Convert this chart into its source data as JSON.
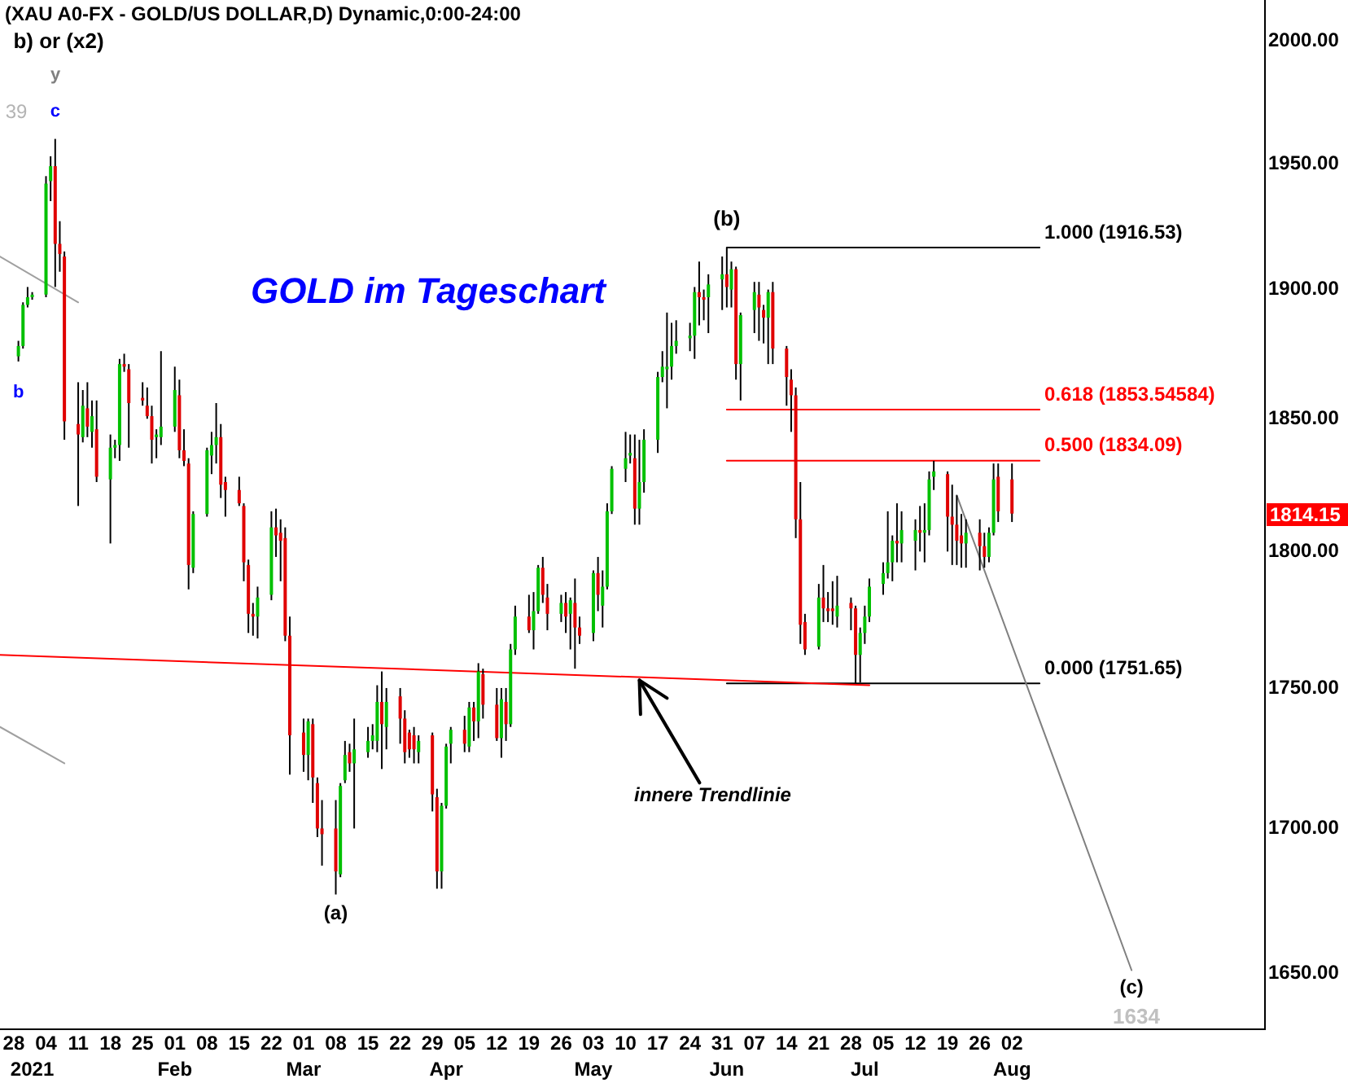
{
  "chart_data": {
    "type": "candlestick",
    "title": "(XAU A0-FX - GOLD/US DOLLAR,D) Dynamic,0:00-24:00",
    "subtitle": "GOLD im Tageschart",
    "x": [
      "2020-12-29",
      "2020-12-30",
      "2020-12-31",
      "2021-01-01",
      "2021-01-04",
      "2021-01-05",
      "2021-01-06",
      "2021-01-07",
      "2021-01-08",
      "2021-01-11",
      "2021-01-12",
      "2021-01-13",
      "2021-01-14",
      "2021-01-15",
      "2021-01-18",
      "2021-01-19",
      "2021-01-20",
      "2021-01-21",
      "2021-01-22",
      "2021-01-25",
      "2021-01-26",
      "2021-01-27",
      "2021-01-28",
      "2021-01-29",
      "2021-02-01",
      "2021-02-02",
      "2021-02-03",
      "2021-02-04",
      "2021-02-05",
      "2021-02-08",
      "2021-02-09",
      "2021-02-10",
      "2021-02-11",
      "2021-02-12",
      "2021-02-15",
      "2021-02-16",
      "2021-02-17",
      "2021-02-18",
      "2021-02-19",
      "2021-02-22",
      "2021-02-23",
      "2021-02-24",
      "2021-02-25",
      "2021-02-26",
      "2021-03-01",
      "2021-03-02",
      "2021-03-03",
      "2021-03-04",
      "2021-03-05",
      "2021-03-08",
      "2021-03-09",
      "2021-03-10",
      "2021-03-11",
      "2021-03-12",
      "2021-03-15",
      "2021-03-16",
      "2021-03-17",
      "2021-03-18",
      "2021-03-19",
      "2021-03-22",
      "2021-03-23",
      "2021-03-24",
      "2021-03-25",
      "2021-03-26",
      "2021-03-29",
      "2021-03-30",
      "2021-03-31",
      "2021-04-01",
      "2021-04-02",
      "2021-04-05",
      "2021-04-06",
      "2021-04-07",
      "2021-04-08",
      "2021-04-09",
      "2021-04-12",
      "2021-04-13",
      "2021-04-14",
      "2021-04-15",
      "2021-04-16",
      "2021-04-19",
      "2021-04-20",
      "2021-04-21",
      "2021-04-22",
      "2021-04-23",
      "2021-04-26",
      "2021-04-27",
      "2021-04-28",
      "2021-04-29",
      "2021-04-30",
      "2021-05-03",
      "2021-05-04",
      "2021-05-05",
      "2021-05-06",
      "2021-05-07",
      "2021-05-10",
      "2021-05-11",
      "2021-05-12",
      "2021-05-13",
      "2021-05-14",
      "2021-05-17",
      "2021-05-18",
      "2021-05-19",
      "2021-05-20",
      "2021-05-21",
      "2021-05-24",
      "2021-05-25",
      "2021-05-26",
      "2021-05-27",
      "2021-05-28",
      "2021-05-31",
      "2021-06-01",
      "2021-06-02",
      "2021-06-03",
      "2021-06-04",
      "2021-06-07",
      "2021-06-08",
      "2021-06-09",
      "2021-06-10",
      "2021-06-11",
      "2021-06-14",
      "2021-06-15",
      "2021-06-16",
      "2021-06-17",
      "2021-06-18",
      "2021-06-21",
      "2021-06-22",
      "2021-06-23",
      "2021-06-24",
      "2021-06-25",
      "2021-06-28",
      "2021-06-29",
      "2021-06-30",
      "2021-07-01",
      "2021-07-02",
      "2021-07-05",
      "2021-07-06",
      "2021-07-07",
      "2021-07-08",
      "2021-07-09",
      "2021-07-12",
      "2021-07-13",
      "2021-07-14",
      "2021-07-15",
      "2021-07-16",
      "2021-07-19",
      "2021-07-20",
      "2021-07-21",
      "2021-07-22",
      "2021-07-23",
      "2021-07-26",
      "2021-07-27",
      "2021-07-28",
      "2021-07-29",
      "2021-07-30",
      "2021-08-02"
    ],
    "ohlc": [
      [
        1874,
        1880,
        1872,
        1878
      ],
      [
        1878,
        1895,
        1877,
        1894
      ],
      [
        1894,
        1901,
        1893,
        1897
      ],
      [
        1897,
        1899,
        1896,
        1898
      ],
      [
        1898,
        1945,
        1897,
        1942
      ],
      [
        1943,
        1953,
        1935,
        1949
      ],
      [
        1949,
        1960,
        1901,
        1918
      ],
      [
        1918,
        1927,
        1907,
        1914
      ],
      [
        1913,
        1915,
        1842,
        1849
      ],
      [
        1848,
        1864,
        1817,
        1844
      ],
      [
        1843,
        1861,
        1841,
        1855
      ],
      [
        1854,
        1864,
        1843,
        1847
      ],
      [
        1845,
        1857,
        1839,
        1851
      ],
      [
        1846,
        1857,
        1826,
        1828
      ],
      [
        1827,
        1844,
        1803,
        1839
      ],
      [
        1839,
        1842,
        1835,
        1840
      ],
      [
        1840,
        1873,
        1834,
        1871
      ],
      [
        1871,
        1875,
        1868,
        1870
      ],
      [
        1869,
        1871,
        1839,
        1856
      ],
      [
        1858,
        1864,
        1855,
        1857
      ],
      [
        1855,
        1862,
        1850,
        1851
      ],
      [
        1851,
        1855,
        1833,
        1842
      ],
      [
        1843,
        1846,
        1835,
        1844
      ],
      [
        1843,
        1876,
        1840,
        1847
      ],
      [
        1847,
        1870,
        1845,
        1861
      ],
      [
        1859,
        1865,
        1835,
        1838
      ],
      [
        1838,
        1846,
        1832,
        1834
      ],
      [
        1833,
        1835,
        1786,
        1795
      ],
      [
        1794,
        1815,
        1792,
        1814
      ],
      [
        1814,
        1839,
        1813,
        1838
      ],
      [
        1836,
        1845,
        1829,
        1840
      ],
      [
        1840,
        1856,
        1833,
        1843
      ],
      [
        1843,
        1848,
        1820,
        1825
      ],
      [
        1826,
        1828,
        1813,
        1823
      ],
      [
        1823,
        1828,
        1817,
        1818
      ],
      [
        1817,
        1818,
        1789,
        1796
      ],
      [
        1795,
        1797,
        1770,
        1777
      ],
      [
        1777,
        1781,
        1769,
        1776
      ],
      [
        1776,
        1787,
        1768,
        1783
      ],
      [
        1784,
        1815,
        1782,
        1809
      ],
      [
        1809,
        1816,
        1798,
        1806
      ],
      [
        1807,
        1812,
        1789,
        1804
      ],
      [
        1805,
        1809,
        1767,
        1769
      ],
      [
        1769,
        1776,
        1719,
        1733
      ],
      [
        1734,
        1739,
        1720,
        1726
      ],
      [
        1726,
        1739,
        1717,
        1738
      ],
      [
        1737,
        1739,
        1709,
        1718
      ],
      [
        1716,
        1718,
        1697,
        1700
      ],
      [
        1700,
        1710,
        1687,
        1698
      ],
      [
        1700,
        1710,
        1677,
        1685
      ],
      [
        1684,
        1716,
        1683,
        1715
      ],
      [
        1717,
        1731,
        1716,
        1726
      ],
      [
        1727,
        1730,
        1720,
        1723
      ],
      [
        1723,
        1739,
        1700,
        1728
      ],
      [
        1727,
        1736,
        1725,
        1731
      ],
      [
        1731,
        1737,
        1728,
        1733
      ],
      [
        1731,
        1751,
        1727,
        1745
      ],
      [
        1745,
        1756,
        1721,
        1737
      ],
      [
        1736,
        1750,
        1728,
        1745
      ],
      [
        1747,
        1750,
        1730,
        1739
      ],
      [
        1739,
        1742,
        1723,
        1727
      ],
      [
        1734,
        1735,
        1725,
        1728
      ],
      [
        1733,
        1736,
        1723,
        1728
      ],
      [
        1727,
        1733,
        1723,
        1731
      ],
      [
        1733,
        1734,
        1706,
        1712
      ],
      [
        1711,
        1714,
        1679,
        1685
      ],
      [
        1685,
        1709,
        1679,
        1708
      ],
      [
        1708,
        1730,
        1707,
        1729
      ],
      [
        1730,
        1736,
        1723,
        1735
      ],
      [
        1735,
        1740,
        1727,
        1730
      ],
      [
        1729,
        1745,
        1727,
        1743
      ],
      [
        1743,
        1745,
        1731,
        1738
      ],
      [
        1738,
        1759,
        1732,
        1756
      ],
      [
        1755,
        1757,
        1739,
        1744
      ],
      [
        1744,
        1750,
        1731,
        1732
      ],
      [
        1732,
        1750,
        1725,
        1746
      ],
      [
        1745,
        1750,
        1731,
        1737
      ],
      [
        1737,
        1766,
        1736,
        1764
      ],
      [
        1764,
        1780,
        1762,
        1776
      ],
      [
        1776,
        1784,
        1770,
        1771
      ],
      [
        1771,
        1785,
        1764,
        1778
      ],
      [
        1778,
        1795,
        1777,
        1794
      ],
      [
        1794,
        1798,
        1781,
        1784
      ],
      [
        1783,
        1788,
        1771,
        1777
      ],
      [
        1777,
        1784,
        1774,
        1781
      ],
      [
        1781,
        1785,
        1770,
        1776
      ],
      [
        1777,
        1783,
        1764,
        1782
      ],
      [
        1781,
        1790,
        1757,
        1772
      ],
      [
        1772,
        1776,
        1766,
        1769
      ],
      [
        1770,
        1793,
        1767,
        1792
      ],
      [
        1792,
        1798,
        1778,
        1784
      ],
      [
        1780,
        1793,
        1772,
        1787
      ],
      [
        1787,
        1818,
        1786,
        1815
      ],
      [
        1815,
        1832,
        1814,
        1831
      ],
      [
        1831,
        1845,
        1826,
        1835
      ],
      [
        1836,
        1844,
        1833,
        1837
      ],
      [
        1835,
        1844,
        1810,
        1816
      ],
      [
        1816,
        1842,
        1810,
        1826
      ],
      [
        1826,
        1846,
        1822,
        1842
      ],
      [
        1842,
        1868,
        1837,
        1866
      ],
      [
        1866,
        1876,
        1864,
        1870
      ],
      [
        1869,
        1891,
        1854,
        1870
      ],
      [
        1870,
        1887,
        1865,
        1878
      ],
      [
        1878,
        1888,
        1875,
        1880
      ],
      [
        1881,
        1887,
        1876,
        1882
      ],
      [
        1882,
        1901,
        1873,
        1899
      ],
      [
        1899,
        1911,
        1886,
        1897
      ],
      [
        1897,
        1900,
        1888,
        1896
      ],
      [
        1897,
        1906,
        1883,
        1902
      ],
      [
        1904,
        1913,
        1892,
        1906
      ],
      [
        1906,
        1916.53,
        1893,
        1901
      ],
      [
        1900,
        1911,
        1893,
        1908
      ],
      [
        1908,
        1909,
        1865,
        1871
      ],
      [
        1871,
        1891,
        1857,
        1890
      ],
      [
        1892,
        1903,
        1883,
        1899
      ],
      [
        1898,
        1903,
        1880,
        1893
      ],
      [
        1892,
        1894,
        1879,
        1889
      ],
      [
        1889,
        1900,
        1871,
        1899
      ],
      [
        1899,
        1903,
        1871,
        1877
      ],
      [
        1877,
        1878,
        1855,
        1866
      ],
      [
        1865,
        1869,
        1845,
        1859
      ],
      [
        1859,
        1862,
        1805,
        1812
      ],
      [
        1812,
        1826,
        1766,
        1773
      ],
      [
        1774,
        1777,
        1762,
        1764
      ],
      [
        1765,
        1788,
        1764,
        1783
      ],
      [
        1783,
        1795,
        1774,
        1779
      ],
      [
        1779,
        1785,
        1774,
        1778
      ],
      [
        1779,
        1789,
        1773,
        1778
      ],
      [
        1776,
        1791,
        1772,
        1780
      ],
      [
        1781,
        1783,
        1771,
        1779
      ],
      [
        1779,
        1780,
        1751.65,
        1762
      ],
      [
        1762,
        1772,
        1752,
        1770
      ],
      [
        1770,
        1780,
        1766,
        1776
      ],
      [
        1776,
        1790,
        1774,
        1787
      ],
      [
        1788,
        1796,
        1784,
        1792
      ],
      [
        1792,
        1815,
        1790,
        1796
      ],
      [
        1796,
        1806,
        1789,
        1804
      ],
      [
        1804,
        1818,
        1796,
        1803
      ],
      [
        1803,
        1815,
        1796,
        1808
      ],
      [
        1804,
        1812,
        1793,
        1808
      ],
      [
        1808,
        1817,
        1800,
        1807
      ],
      [
        1807,
        1818,
        1796,
        1808
      ],
      [
        1808,
        1830,
        1806,
        1827
      ],
      [
        1828,
        1834,
        1823,
        1830
      ],
      [
        1829,
        1830,
        1800,
        1813
      ],
      [
        1813,
        1825,
        1795,
        1810
      ],
      [
        1810,
        1821,
        1795,
        1804
      ],
      [
        1806,
        1814,
        1794,
        1803
      ],
      [
        1803,
        1812,
        1794,
        1807
      ],
      [
        1807,
        1812,
        1793,
        1802
      ],
      [
        1802,
        1807,
        1794,
        1798
      ],
      [
        1798,
        1809,
        1796,
        1807
      ],
      [
        1807,
        1833,
        1806,
        1827
      ],
      [
        1828,
        1833,
        1811,
        1815
      ],
      [
        1827,
        1833,
        1811,
        1814.15
      ]
    ],
    "colors": [
      "#00c000",
      "#00c000",
      "#00c000",
      "#00c000",
      "#00c000",
      "#00c000",
      "#e00000",
      "#e00000",
      "#e00000",
      "#e00000",
      "#00c000",
      "#e00000",
      "#00c000",
      "#e00000",
      "#00c000",
      "#00c000",
      "#00c000",
      "#e00000",
      "#e00000",
      "#e00000",
      "#e00000",
      "#e00000",
      "#00c000",
      "#00c000",
      "#00c000",
      "#e00000",
      "#e00000",
      "#e00000",
      "#00c000",
      "#00c000",
      "#00c000",
      "#00c000",
      "#e00000",
      "#e00000",
      "#e00000",
      "#e00000",
      "#e00000",
      "#e00000",
      "#00c000",
      "#00c000",
      "#e00000",
      "#e00000",
      "#e00000",
      "#e00000",
      "#e00000",
      "#00c000",
      "#e00000",
      "#e00000",
      "#e00000",
      "#e00000",
      "#00c000",
      "#00c000",
      "#e00000",
      "#00c000",
      "#00c000",
      "#00c000",
      "#00c000",
      "#e00000",
      "#00c000",
      "#e00000",
      "#e00000",
      "#e00000",
      "#e00000",
      "#00c000",
      "#e00000",
      "#e00000",
      "#00c000",
      "#00c000",
      "#00c000",
      "#e00000",
      "#00c000",
      "#e00000",
      "#00c000",
      "#e00000",
      "#e00000",
      "#00c000",
      "#e00000",
      "#00c000",
      "#00c000",
      "#e00000",
      "#00c000",
      "#00c000",
      "#e00000",
      "#e00000",
      "#00c000",
      "#e00000",
      "#00c000",
      "#e00000",
      "#e00000",
      "#00c000",
      "#e00000",
      "#00c000",
      "#00c000",
      "#00c000",
      "#00c000",
      "#00c000",
      "#e00000",
      "#00c000",
      "#00c000",
      "#00c000",
      "#00c000",
      "#00c000",
      "#00c000",
      "#00c000",
      "#00c000",
      "#00c000",
      "#e00000",
      "#e00000",
      "#00c000",
      "#00c000",
      "#e00000",
      "#00c000",
      "#e00000",
      "#00c000",
      "#00c000",
      "#e00000",
      "#e00000",
      "#00c000",
      "#e00000",
      "#e00000",
      "#e00000",
      "#e00000",
      "#e00000",
      "#e00000",
      "#00c000",
      "#e00000",
      "#e00000",
      "#e00000",
      "#00c000",
      "#e00000",
      "#e00000",
      "#00c000",
      "#00c000",
      "#00c000",
      "#00c000",
      "#00c000",
      "#00c000",
      "#e00000",
      "#00c000",
      "#00c000",
      "#e00000",
      "#00c000",
      "#00c000",
      "#00c000",
      "#e00000",
      "#e00000",
      "#e00000",
      "#e00000",
      "#00c000",
      "#e00000",
      "#e00000",
      "#00c000",
      "#00c000",
      "#e00000",
      "#e00000"
    ],
    "series": [
      {
        "type": "line",
        "x": [
          "2020-12-25",
          "2021-07-02"
        ],
        "values": [
          1762,
          1751
        ],
        "color": "#ff0000"
      },
      {
        "type": "line",
        "x": [
          "2020-12-25",
          "2021-01-11"
        ],
        "values": [
          1913,
          1895
        ],
        "color": "#a0a0a0"
      },
      {
        "type": "line",
        "x": [
          "2020-12-25",
          "2021-01-08"
        ],
        "values": [
          1736,
          1723
        ],
        "color": "#a0a0a0"
      },
      {
        "type": "line",
        "x": [
          "2021-07-21",
          "2021-08-28"
        ],
        "values": [
          1821,
          1651
        ],
        "color": "#808080"
      },
      {
        "type": "line",
        "x": [
          "2021-06-01",
          "2021-08-08"
        ],
        "values": [
          1916.53,
          1916.53
        ],
        "color": "#000000"
      },
      {
        "type": "line",
        "x": [
          "2021-06-01",
          "2021-08-08"
        ],
        "values": [
          1853.54584,
          1853.54584
        ],
        "color": "#ff0000"
      },
      {
        "type": "line",
        "x": [
          "2021-06-01",
          "2021-08-08"
        ],
        "values": [
          1834.09,
          1834.09
        ],
        "color": "#ff0000"
      },
      {
        "type": "line",
        "x": [
          "2021-06-01",
          "2021-08-08"
        ],
        "values": [
          1751.65,
          1751.65
        ],
        "color": "#000000"
      }
    ],
    "log": true,
    "xlim": [
      "2020-12-25",
      "2021-09-26"
    ],
    "xticks": [
      {
        "value": "2020-12-28",
        "label": "28"
      },
      {
        "value": "2021-01-04",
        "label": "04"
      },
      {
        "value": "2021-01-11",
        "label": "11"
      },
      {
        "value": "2021-01-18",
        "label": "18"
      },
      {
        "value": "2021-01-25",
        "label": "25"
      },
      {
        "value": "2021-02-01",
        "label": "01"
      },
      {
        "value": "2021-02-08",
        "label": "08"
      },
      {
        "value": "2021-02-15",
        "label": "15"
      },
      {
        "value": "2021-02-22",
        "label": "22"
      },
      {
        "value": "2021-03-01",
        "label": "01"
      },
      {
        "value": "2021-03-08",
        "label": "08"
      },
      {
        "value": "2021-03-15",
        "label": "15"
      },
      {
        "value": "2021-03-22",
        "label": "22"
      },
      {
        "value": "2021-03-29",
        "label": "29"
      },
      {
        "value": "2021-04-05",
        "label": "05"
      },
      {
        "value": "2021-04-12",
        "label": "12"
      },
      {
        "value": "2021-04-19",
        "label": "19"
      },
      {
        "value": "2021-04-26",
        "label": "26"
      },
      {
        "value": "2021-05-03",
        "label": "03"
      },
      {
        "value": "2021-05-10",
        "label": "10"
      },
      {
        "value": "2021-05-17",
        "label": "17"
      },
      {
        "value": "2021-05-24",
        "label": "24"
      },
      {
        "value": "2021-05-31",
        "label": "31"
      },
      {
        "value": "2021-06-07",
        "label": "07"
      },
      {
        "value": "2021-06-14",
        "label": "14"
      },
      {
        "value": "2021-06-21",
        "label": "21"
      },
      {
        "value": "2021-06-28",
        "label": "28"
      },
      {
        "value": "2021-07-05",
        "label": "05"
      },
      {
        "value": "2021-07-12",
        "label": "12"
      },
      {
        "value": "2021-07-19",
        "label": "19"
      },
      {
        "value": "2021-07-26",
        "label": "26"
      },
      {
        "value": "2021-08-02",
        "label": "02"
      }
    ],
    "x2lim": [
      "2021-01-01",
      "2021-08-02"
    ],
    "x2ticks": [
      {
        "value": "2021-01-01",
        "label": "2021"
      },
      {
        "value": "2021-02-01",
        "label": "Feb"
      },
      {
        "value": "2021-03-01",
        "label": "Mar"
      },
      {
        "value": "2021-04-01",
        "label": "Apr"
      },
      {
        "value": "2021-05-03",
        "label": "May"
      },
      {
        "value": "2021-06-01",
        "label": "Jun"
      },
      {
        "value": "2021-07-01",
        "label": "Jul"
      },
      {
        "value": "2021-08-02",
        "label": "Aug"
      }
    ],
    "ylim": [
      1631,
      2017
    ],
    "yticks": [
      {
        "value": 1650,
        "label": "1650.00"
      },
      {
        "value": 1700,
        "label": "1700.00"
      },
      {
        "value": 1750,
        "label": "1750.00"
      },
      {
        "value": 1800,
        "label": "1800.00"
      },
      {
        "value": 1850,
        "label": "1850.00"
      },
      {
        "value": 1900,
        "label": "1900.00"
      },
      {
        "value": 1950,
        "label": "1950.00"
      },
      {
        "value": 2000,
        "label": "2000.00"
      }
    ],
    "annotations": [
      "b) or (x2)",
      "y",
      "39",
      {
        "text": "c",
        "x": "2021-01-06",
        "y": 1960
      },
      {
        "text": "b",
        "x": "2020-12-29",
        "y": 1872
      },
      {
        "text": "(b)",
        "x": "2021-06-01",
        "y": 1916.53
      },
      {
        "text": "1.000 (1916.53)",
        "x": "2021-08-08",
        "y": 1916.53
      },
      {
        "text": "0.618 (1853.54584)",
        "x": "2021-08-08",
        "y": 1853.54584
      },
      {
        "text": "0.500 (1834.09)",
        "x": "2021-08-08",
        "y": 1834.09
      },
      {
        "text": "0.000 (1751.65)",
        "x": "2021-08-08",
        "y": 1751.65
      },
      {
        "text": "innere Trendlinie",
        "x": "2021-05-13",
        "y": 1754
      },
      {
        "text": "(a)",
        "x": "2021-03-08",
        "y": 1677
      },
      {
        "text": "(c)",
        "x": "2021-08-28",
        "y": 1651
      },
      "1634",
      "1814.15"
    ]
  }
}
